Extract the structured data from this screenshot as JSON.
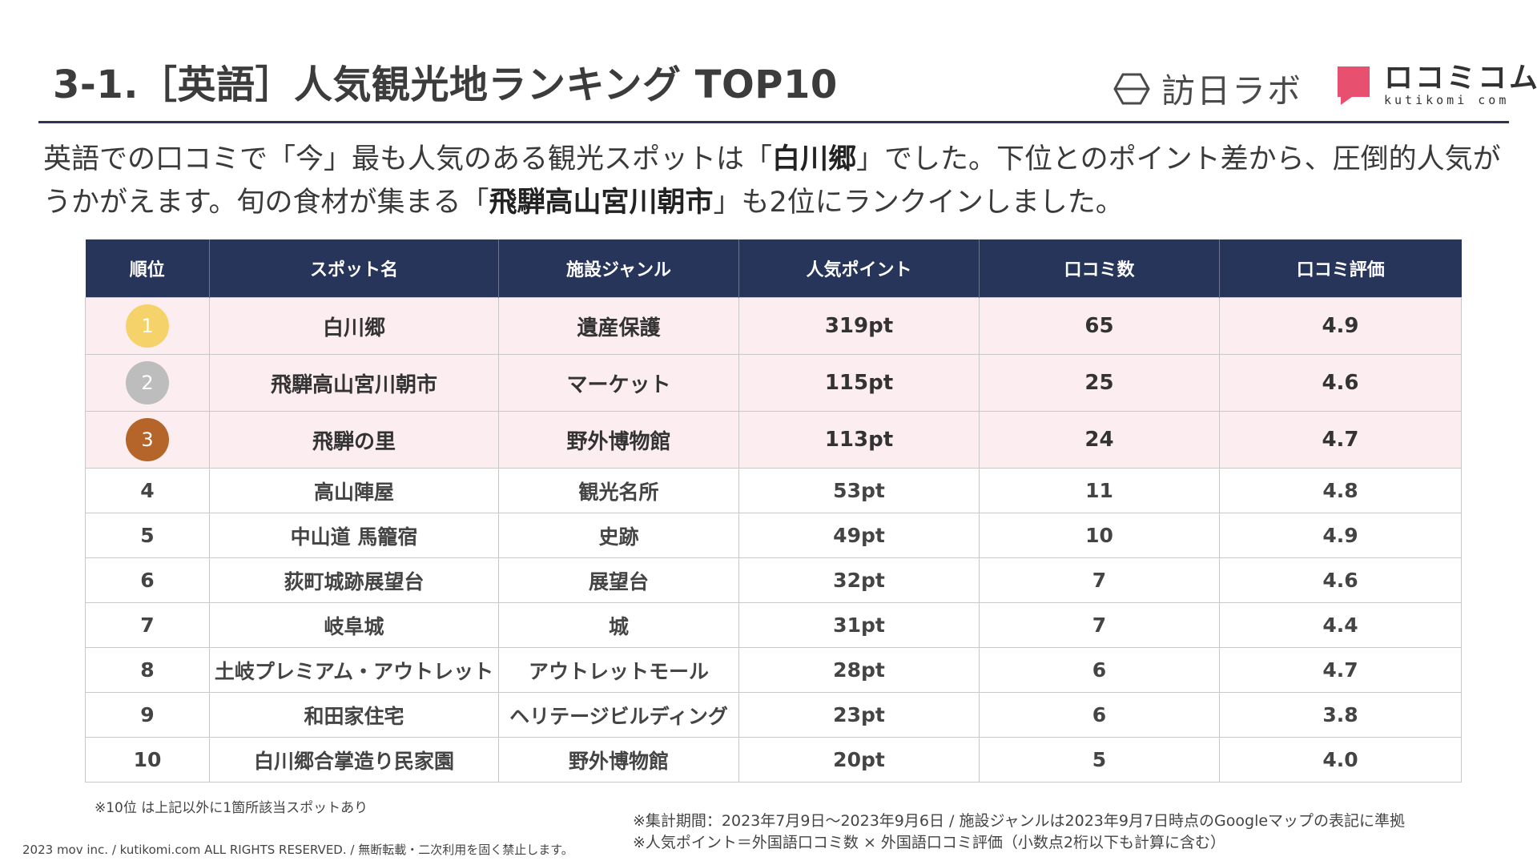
{
  "header": {
    "title": "3-1.［英語］人気観光地ランキング TOP10",
    "logo_labs": "訪日ラボ",
    "logo_kutikomi": "ロコミコム",
    "logo_kutikomi_sub": "kutikomi com"
  },
  "lead": {
    "line1_a": "英語での口コミで「今」最も人気のある観光スポットは「",
    "line1_b": "白川郷",
    "line1_c": "」でした。下位とのポイント差から、圧倒的人気が",
    "line2_a": "うかがえます。旬の食材が集まる「",
    "line2_b": "飛騨高山宮川朝市",
    "line2_c": "」も2位にランクインしました。"
  },
  "table": {
    "headers": [
      "順位",
      "スポット名",
      "施設ジャンル",
      "人気ポイント",
      "口コミ数",
      "口コミ評価"
    ],
    "rows": [
      {
        "rank": "1",
        "spot": "白川郷",
        "genre": "遺産保護",
        "points": "319pt",
        "count": "65",
        "rating": "4.9",
        "medal": "#f6d36a"
      },
      {
        "rank": "2",
        "spot": "飛騨高山宮川朝市",
        "genre": "マーケット",
        "points": "115pt",
        "count": "25",
        "rating": "4.6",
        "medal": "#bdbdbd"
      },
      {
        "rank": "3",
        "spot": "飛騨の里",
        "genre": "野外博物館",
        "points": "113pt",
        "count": "24",
        "rating": "4.7",
        "medal": "#b5652a"
      },
      {
        "rank": "4",
        "spot": "高山陣屋",
        "genre": "観光名所",
        "points": "53pt",
        "count": "11",
        "rating": "4.8"
      },
      {
        "rank": "5",
        "spot": "中山道 馬籠宿",
        "genre": "史跡",
        "points": "49pt",
        "count": "10",
        "rating": "4.9"
      },
      {
        "rank": "6",
        "spot": "荻町城跡展望台",
        "genre": "展望台",
        "points": "32pt",
        "count": "7",
        "rating": "4.6"
      },
      {
        "rank": "7",
        "spot": "岐阜城",
        "genre": "城",
        "points": "31pt",
        "count": "7",
        "rating": "4.4"
      },
      {
        "rank": "8",
        "spot": "土岐プレミアム・アウトレット",
        "genre": "アウトレットモール",
        "points": "28pt",
        "count": "6",
        "rating": "4.7"
      },
      {
        "rank": "9",
        "spot": "和田家住宅",
        "genre": "ヘリテージビルディング",
        "points": "23pt",
        "count": "6",
        "rating": "3.8"
      },
      {
        "rank": "10",
        "spot": "白川郷合掌造り民家園",
        "genre": "野外博物館",
        "points": "20pt",
        "count": "5",
        "rating": "4.0"
      }
    ]
  },
  "footnotes": {
    "note_rank10": "※10位 は上記以外に1箇所該当スポットあり",
    "note_period": "※集計期間：2023年7月9日～2023年9月6日 / 施設ジャンルは2023年9月7日時点のGoogleマップの表記に準拠",
    "note_points": "※人気ポイント＝外国語口コミ数 × 外国語口コミ評価（小数点2桁以下も計算に含む）",
    "copyright": "2023 mov inc. / kutikomi.com ALL RIGHTS RESERVED. / 無断転載・二次利用を固く禁止します。"
  },
  "colors": {
    "header_navy": "#27355a",
    "top3_row_bg": "#fcedf1",
    "kutikomi_pink": "#e8506f"
  }
}
